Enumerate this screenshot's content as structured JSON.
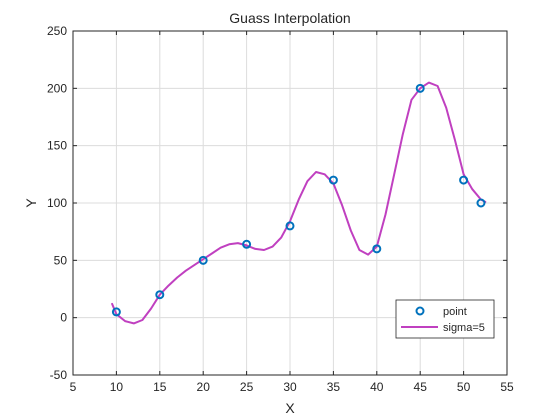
{
  "chart_data": {
    "type": "line",
    "title": "Guass Interpolation",
    "xlabel": "X",
    "ylabel": "Y",
    "xlim": [
      5,
      55
    ],
    "ylim": [
      -50,
      250
    ],
    "xticks": [
      5,
      10,
      15,
      20,
      25,
      30,
      35,
      40,
      45,
      50,
      55
    ],
    "yticks": [
      -50,
      0,
      50,
      100,
      150,
      200,
      250
    ],
    "grid": true,
    "legend_position": "bottom-right",
    "series": [
      {
        "name": "point",
        "style": "markers",
        "color": "#0072BD",
        "x": [
          10,
          15,
          20,
          25,
          30,
          35,
          40,
          45,
          50,
          52
        ],
        "y": [
          5,
          20,
          50,
          64,
          80,
          120,
          60,
          200,
          120,
          100
        ]
      },
      {
        "name": "sigma=5",
        "style": "line",
        "color": "#C040C0",
        "x": [
          9.5,
          10,
          11,
          12,
          13,
          14,
          15,
          16,
          17,
          18,
          19,
          20,
          21,
          22,
          23,
          24,
          25,
          26,
          27,
          28,
          29,
          30,
          31,
          32,
          33,
          34,
          35,
          36,
          37,
          38,
          39,
          40,
          41,
          42,
          43,
          44,
          45,
          46,
          47,
          48,
          49,
          50,
          51,
          52,
          52.5
        ],
        "y": [
          12,
          3,
          -3,
          -5,
          -2,
          8,
          20,
          28,
          35,
          41,
          46,
          51,
          56,
          61,
          64,
          65,
          63,
          60,
          59,
          62,
          70,
          84,
          103,
          119,
          127,
          125,
          117,
          98,
          76,
          59,
          55,
          62,
          90,
          125,
          160,
          190,
          200,
          205,
          202,
          183,
          155,
          125,
          112,
          103,
          101
        ]
      }
    ]
  }
}
